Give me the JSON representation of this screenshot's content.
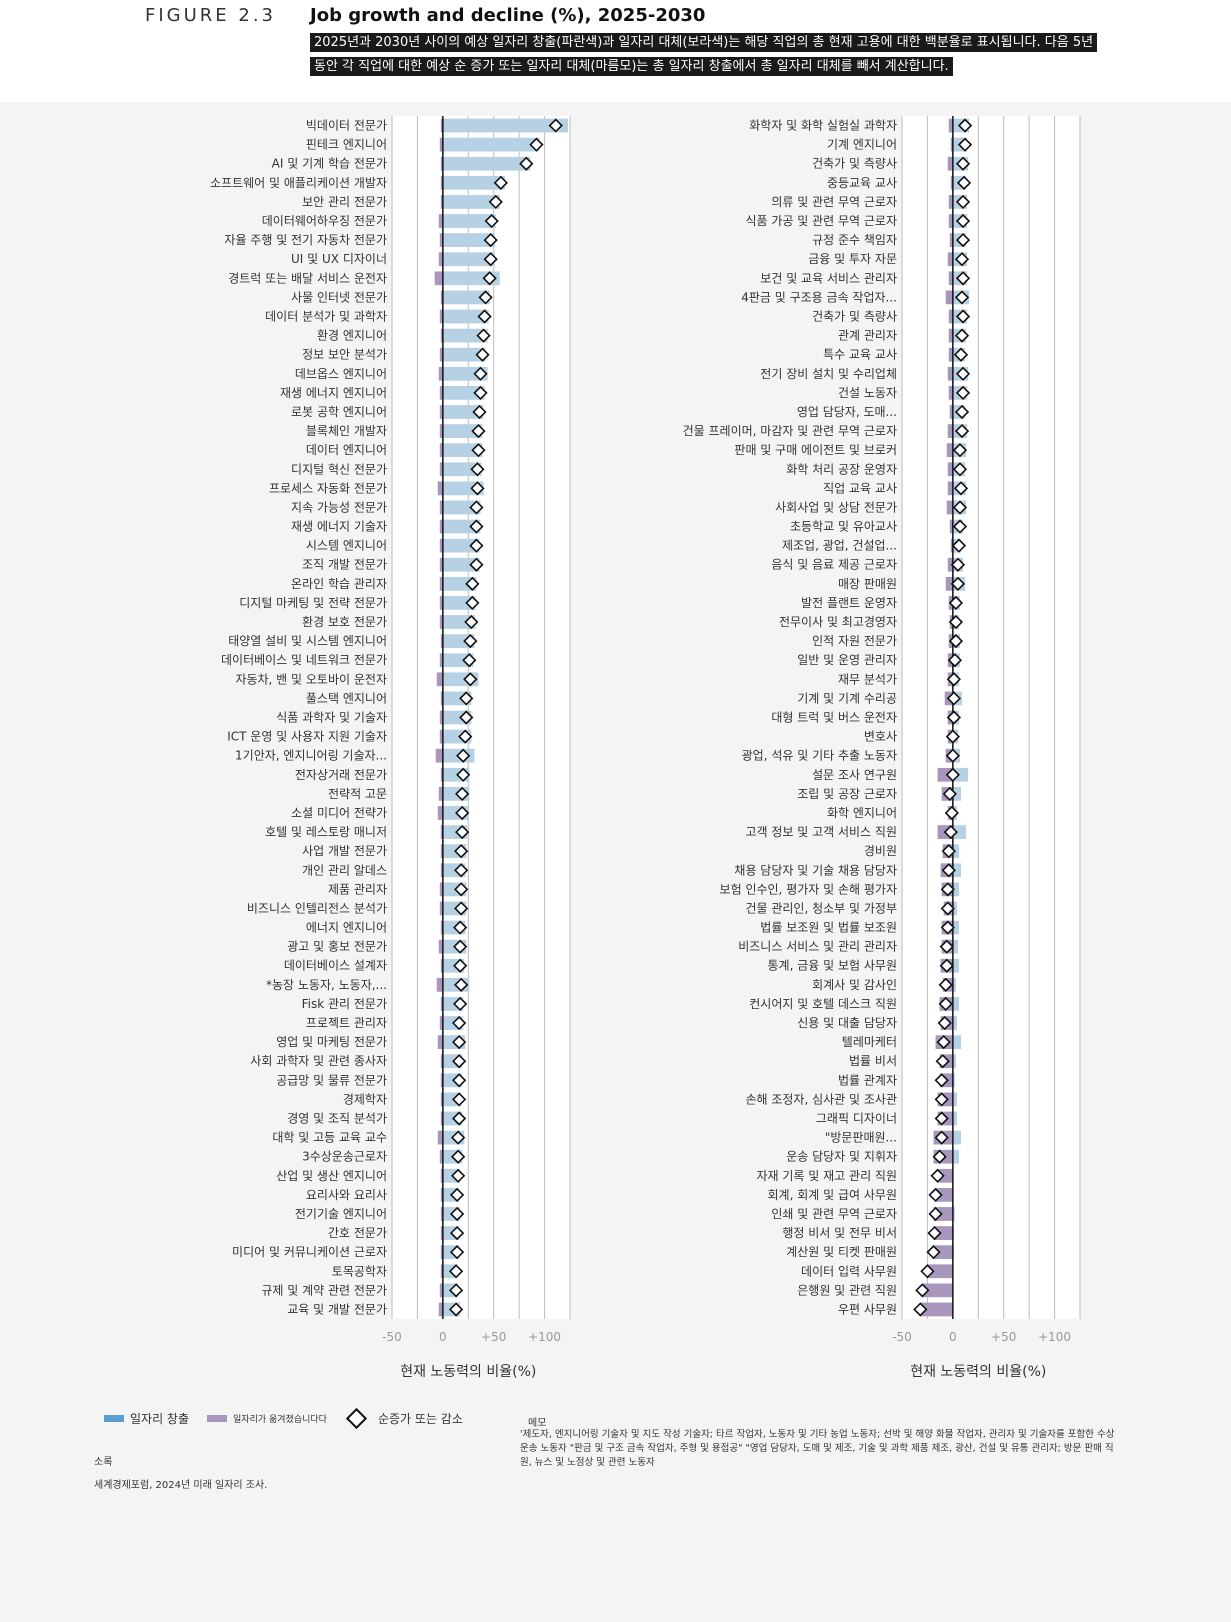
{
  "header": {
    "figure_label": "FIGURE 2.3",
    "title": "Job growth and decline (%), 2025-2030",
    "description": "2025년과 2030년 사이의 예상 일자리 창출(파란색)과 일자리 대체(보라색)는 해당 직업의 총 현재 고용에 대한 백분율로 표시됩니다. 다음 5년 동안 각 직업에 대한 예상 순 증가 또는 일자리 대체(마름모)는 총 일자리 창출에서 총 일자리 대체를 빼서 계산합니다."
  },
  "colors": {
    "creation": "#b6d0e4",
    "displacement": "#a896bd",
    "grid": "#bdbdbd",
    "zero": "#111111",
    "legend_creation": "#5b9fd2"
  },
  "legend": {
    "creation": "일자리 창출",
    "displacement": "일자리가 옮겨졌습니다다",
    "net": "순증가 또는 감소"
  },
  "source": {
    "title": "소록",
    "text": "세계경제포럼, 2024년 미래 일자리 조사."
  },
  "notes": {
    "title": "메모",
    "text": "'제도자, 엔지니어링 기술자 및 지도 작성 기술자; 타르 작업자, 노동자 및 기타 농업 노동자; 선박 및 해양 화물 작업자, 관리자 및 기술자를 포함한 수상 운송 노동자 \"판금 및 구조 금속 작업자, 주형 및 용접공\" \"영업 담당자, 도매 및 제조, 기술 및 과학 제품 제조, 광산, 건설 및 유통 관리자; 방문 판매 직원, 뉴스 및 노점상 및 관련 노동자"
  },
  "chart_data": [
    {
      "type": "bar",
      "title": "",
      "xlabel": "현재 노동력의 비율(%)",
      "xlim": [
        -50,
        125
      ],
      "xticks": [
        -50,
        0,
        50,
        100
      ],
      "xtick_labels": [
        "-50",
        "0",
        "+50",
        "+100"
      ],
      "categories": [
        "빅데이터 전문가",
        "핀테크 엔지니어",
        "AI 및 기계 학습 전문가",
        "소프트웨어 및 애플리케이션 개발자",
        "보안 관리 전문가",
        "데이터웨어하우징 전문가",
        "자율 주행 및 전기 자동차 전문가",
        "UI 및 UX 디자이너",
        "경트럭 또는 배달 서비스 운전자",
        "사물 인터넷 전문가",
        "데이터 분석가 및 과학자",
        "환경 엔지니어",
        "정보 보안 분석가",
        "데브옵스 엔지니어",
        "재생 에너지 엔지니어",
        "로봇 공학 엔지니어",
        "블록체인 개발자",
        "데이터 엔지니어",
        "디지털 혁신 전문가",
        "프로세스 자동화 전문가",
        "지속 가능성 전문가",
        "재생 에너지 기술자",
        "시스템 엔지니어",
        "조직 개발 전문가",
        "온라인 학습 관리자",
        "디지털 마케팅 및 전략 전문가",
        "환경 보호 전문가",
        "태양열 설비 및 시스템 엔지니어",
        "데이터베이스 및 네트워크 전문가",
        "자동차, 밴 및 오토바이 운전자",
        "풀스택 엔지니어",
        "식품 과학자 및 기술자",
        "ICT 운영 및 사용자 지원 기술자",
        "1기안자, 엔지니어링 기술자...",
        "전자상거래 전문가",
        "전략적 고문",
        "소셜 미디어 전략가",
        "호텔 및 레스토랑 매니저",
        "사업 개발 전문가",
        "개인 관리 알데스",
        "제품 관리자",
        "비즈니스 인텔리전스 분석가",
        "에너지 엔지니어",
        "광고 및 홍보 전문가",
        "데이터베이스 설계자",
        "*농장 노동자, 노동자,...",
        "Fisk 관리 전문가",
        "프로젝트 관리자",
        "영업 및 마케팅 전문가",
        "사회 과학자 및 관련 종사자",
        "공급망 및 물류 전문가",
        "경제학자",
        "경영 및 조직 분석가",
        "대학 및 고등 교육 교수",
        "3수상운송근로자",
        "산업 및 생산 엔지니어",
        "요리사와 요리사",
        "전기기술 엔지니어",
        "간호 전문가",
        "미디어 및 커뮤니케이션 근로자",
        "토목공학자",
        "규제 및 계약 관련 전문가",
        "교육 및 개발 전문가"
      ],
      "series": [
        {
          "name": "일자리 창출",
          "values": [
            123,
            95,
            86,
            61,
            56,
            52,
            51,
            51,
            56,
            46,
            45,
            44,
            42,
            44,
            41,
            40,
            39,
            39,
            38,
            40,
            37,
            37,
            36,
            36,
            33,
            32,
            32,
            31,
            30,
            35,
            28,
            28,
            28,
            31,
            26,
            26,
            25,
            24,
            23,
            22,
            23,
            23,
            22,
            23,
            21,
            26,
            20,
            20,
            22,
            19,
            19,
            18,
            19,
            21,
            19,
            17,
            16,
            17,
            16,
            16,
            14,
            15,
            17
          ]
        },
        {
          "name": "일자리가 옮겨졌습니다다",
          "values": [
            2,
            3,
            2,
            2,
            2,
            4,
            3,
            4,
            8,
            2,
            3,
            2,
            3,
            4,
            3,
            3,
            3,
            3,
            3,
            5,
            3,
            3,
            3,
            3,
            3,
            3,
            3,
            2,
            3,
            6,
            2,
            3,
            3,
            7,
            2,
            4,
            5,
            2,
            2,
            2,
            3,
            3,
            2,
            4,
            2,
            6,
            2,
            3,
            5,
            2,
            2,
            2,
            2,
            5,
            3,
            2,
            2,
            2,
            2,
            2,
            2,
            3,
            4
          ]
        },
        {
          "name": "순증가 또는 감소",
          "values": [
            111,
            92,
            82,
            57,
            52,
            48,
            47,
            47,
            46,
            42,
            41,
            40,
            39,
            37,
            37,
            36,
            35,
            35,
            34,
            34,
            33,
            33,
            33,
            33,
            29,
            29,
            28,
            27,
            26,
            27,
            23,
            23,
            22,
            20,
            20,
            19,
            19,
            19,
            18,
            18,
            18,
            18,
            17,
            17,
            17,
            18,
            17,
            16,
            16,
            16,
            16,
            16,
            16,
            15,
            15,
            15,
            14,
            14,
            14,
            14,
            13,
            13,
            13
          ]
        }
      ]
    },
    {
      "type": "bar",
      "title": "",
      "xlabel": "현재 노동력의 비율(%)",
      "xlim": [
        -50,
        125
      ],
      "xticks": [
        -50,
        0,
        50,
        100
      ],
      "xtick_labels": [
        "-50",
        "0",
        "+50",
        "+100"
      ],
      "categories": [
        "화학자 및 화학 실험실 과학자",
        "기계 엔지니어",
        "건축가 및 측량사",
        "중등교육 교사",
        "의류 및 관련 무역 근로자",
        "식품 가공 및 관련 무역 근로자",
        "규정 준수 책임자",
        "금융 및 투자 자문",
        "보건 및 교육 서비스 관리자",
        "4판금 및 구조용 금속 작업자...",
        "건축가 및 측량사",
        "관계 관리자",
        "특수 교육 교사",
        "전기 장비 설치 및 수리업체",
        "건설 노동자",
        "영업 담당자, 도매...",
        "건물 프레이머, 마감자 및 관련 무역 근로자",
        "판매 및 구매 에이전트 및 브로커",
        "화학 처리 공장 운영자",
        "직업 교육 교사",
        "사회사업 및 상담 전문가",
        "초등학교 및 유아교사",
        "제조업, 광업, 건설업...",
        "음식 및 음료 제공 근로자",
        "매장 판매원",
        "발전 플랜트 운영자",
        "전무이사 및 최고경영자",
        "인적 자원 전문가",
        "일반 및 운영 관리자",
        "재무 분석가",
        "기계 및 기계 수리공",
        "대형 트럭 및 버스 운전자",
        "변호사",
        "광업, 석유 및 기타 추출 노동자",
        "설문 조사 연구원",
        "조립 및 공장 근로자",
        "화학 엔지니어",
        "고객 정보 및 고객 서비스 직원",
        "경비원",
        "채용 담당자 및 기술 채용 담당자",
        "보험 인수인, 평가자 및 손해 평가자",
        "건물 관리인, 청소부 및 가정부",
        "법률 보조원 및 법률 보조원",
        "비즈니스 서비스 및 관리 관리자",
        "통계, 금융 및 보험 사무원",
        "회계사 및 감사인",
        "컨시어지 및 호텔 데스크 직원",
        "신용 및 대출 담당자",
        "텔레마케터",
        "법률 비서",
        "법률 관계자",
        "손해 조정자, 심사관 및 조사관",
        "그래픽 디자이너",
        "\"방문판매원...",
        "운송 담당자 및 지휘자",
        "자재 기록 및 재고 관리 직원",
        "회계, 회계 및 급여 사무원",
        "인쇄 및 관련 무역 근로자",
        "행정 비서 및 전무 비서",
        "계산원 및 티켓 판매원",
        "데이터 입력 사무원",
        "은행원 및 관련 직원",
        "우편 사무원"
      ],
      "series": [
        {
          "name": "일자리 창출",
          "values": [
            16,
            14,
            15,
            13,
            14,
            14,
            13,
            14,
            14,
            16,
            14,
            13,
            12,
            15,
            14,
            12,
            14,
            13,
            12,
            13,
            13,
            10,
            8,
            10,
            12,
            7,
            6,
            7,
            7,
            6,
            9,
            6,
            5,
            7,
            15,
            8,
            4,
            13,
            6,
            8,
            6,
            4,
            6,
            5,
            6,
            3,
            6,
            4,
            8,
            3,
            2,
            4,
            4,
            8,
            6,
            0,
            0,
            2,
            1,
            1,
            0,
            0,
            0
          ]
        },
        {
          "name": "일자리가 옮겨졌습니다다",
          "values": [
            4,
            2,
            5,
            2,
            4,
            4,
            3,
            5,
            4,
            7,
            4,
            4,
            4,
            5,
            4,
            3,
            5,
            6,
            5,
            5,
            6,
            3,
            2,
            5,
            7,
            4,
            3,
            4,
            5,
            5,
            8,
            5,
            5,
            7,
            15,
            11,
            5,
            15,
            10,
            12,
            11,
            9,
            11,
            11,
            12,
            10,
            13,
            12,
            17,
            13,
            13,
            15,
            15,
            19,
            19,
            15,
            17,
            19,
            19,
            20,
            25,
            30,
            32
          ]
        },
        {
          "name": "순증가 또는 감소",
          "values": [
            12,
            12,
            10,
            11,
            10,
            10,
            10,
            9,
            10,
            9,
            10,
            9,
            8,
            10,
            10,
            9,
            9,
            7,
            7,
            8,
            7,
            7,
            6,
            5,
            5,
            3,
            3,
            3,
            2,
            1,
            1,
            1,
            0,
            0,
            0,
            -3,
            -1,
            -2,
            -4,
            -4,
            -5,
            -5,
            -5,
            -6,
            -6,
            -7,
            -7,
            -8,
            -9,
            -10,
            -11,
            -11,
            -11,
            -11,
            -13,
            -15,
            -17,
            -17,
            -18,
            -19,
            -25,
            -30,
            -32
          ]
        }
      ]
    }
  ]
}
